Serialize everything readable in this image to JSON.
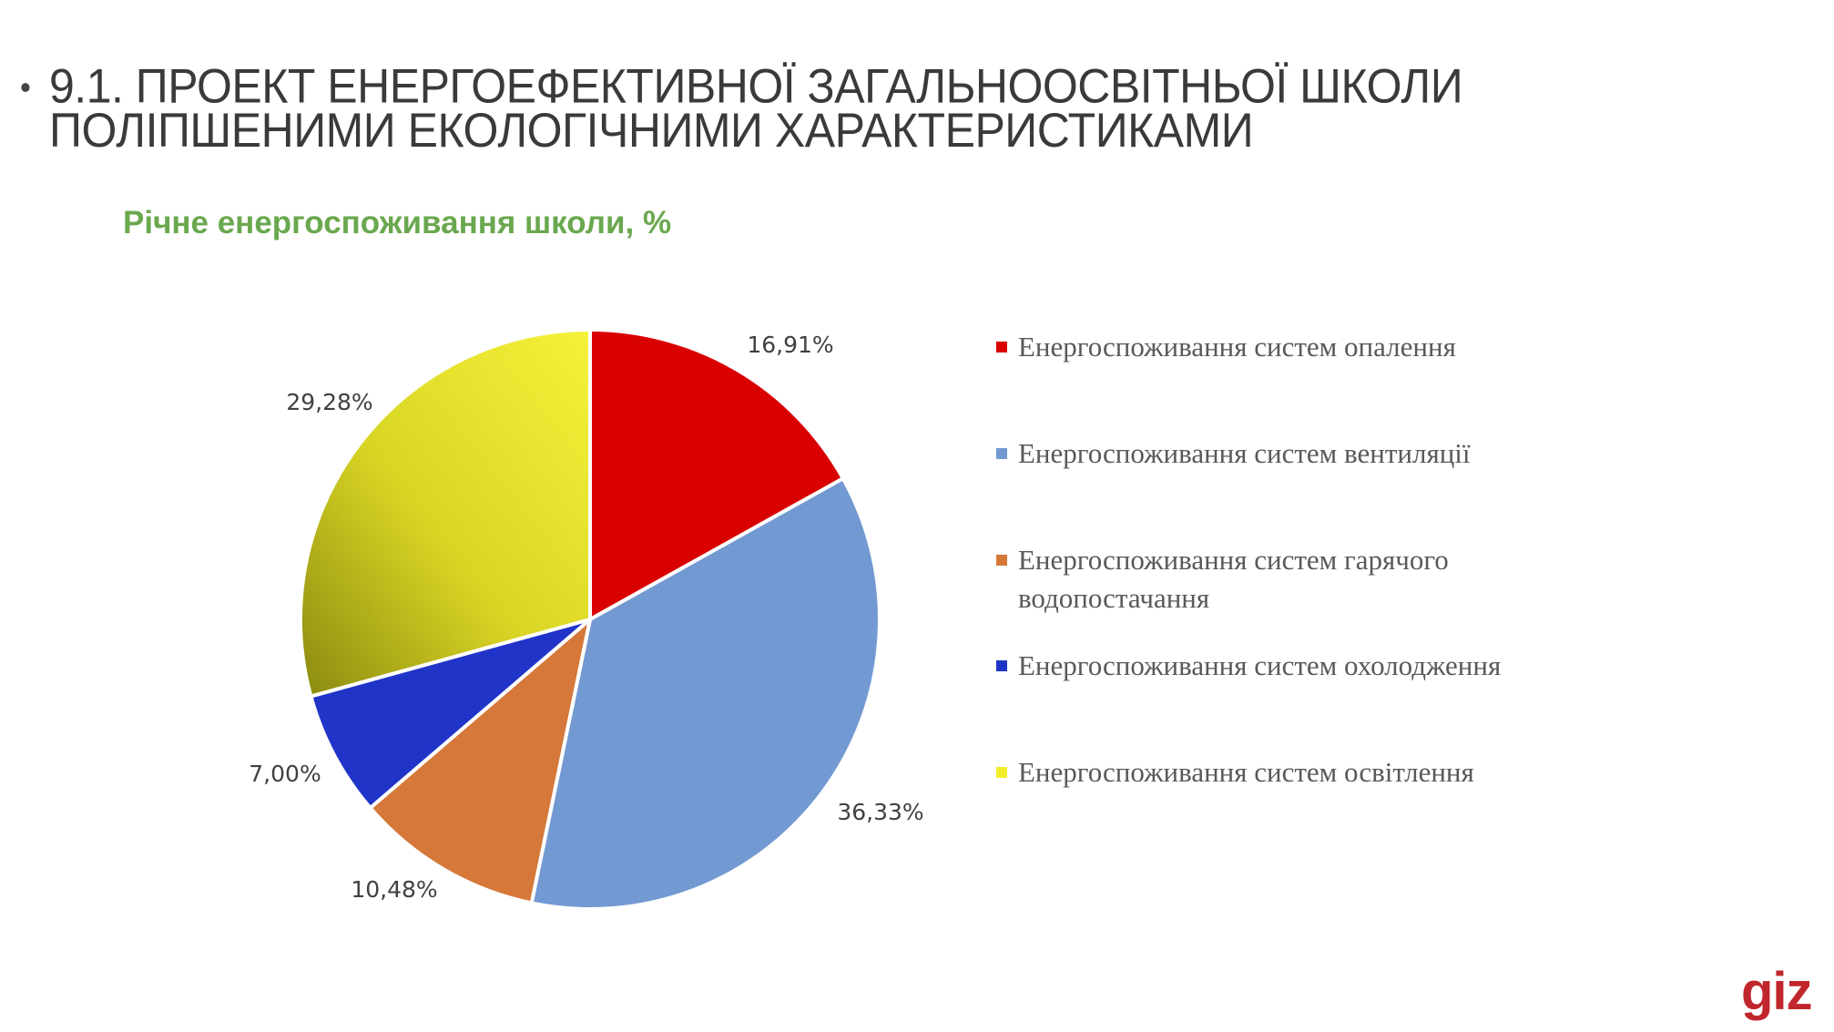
{
  "slide": {
    "bullet": "•",
    "title_line1": "9.1. ПРОЕКТ ЕНЕРГОЕФЕКТИВНОЇ ЗАГАЛЬНООСВІТНЬОЇ ШКОЛИ",
    "title_line2": "ПОЛІПШЕНИМИ ЕКОЛОГІЧНИМИ ХАРАКТЕРИСТИКАМИ",
    "logo_text": "giz",
    "logo_color": "#c0272d"
  },
  "chart_data": {
    "type": "pie",
    "title": "Річне енергоспоживання школи, %",
    "legend_position": "right",
    "slices": [
      {
        "name": "Енергоспоживання систем опалення",
        "value": 16.91,
        "label": "16,91%",
        "color": "#d90000"
      },
      {
        "name": "Енергоспоживання систем вентиляції",
        "value": 36.33,
        "label": "36,33%",
        "color": "#7399d2"
      },
      {
        "name": "Енергоспоживання систем гарячого водопостачання",
        "value": 10.48,
        "label": "10,48%",
        "color": "#d5783a"
      },
      {
        "name": "Енергоспоживання систем охолодження",
        "value": 7.0,
        "label": "7,00%",
        "color": "#2035c8"
      },
      {
        "name": "Енергоспоживання систем освітлення",
        "value": 29.28,
        "label": "29,28%",
        "color": "#f2ee2a"
      }
    ]
  }
}
